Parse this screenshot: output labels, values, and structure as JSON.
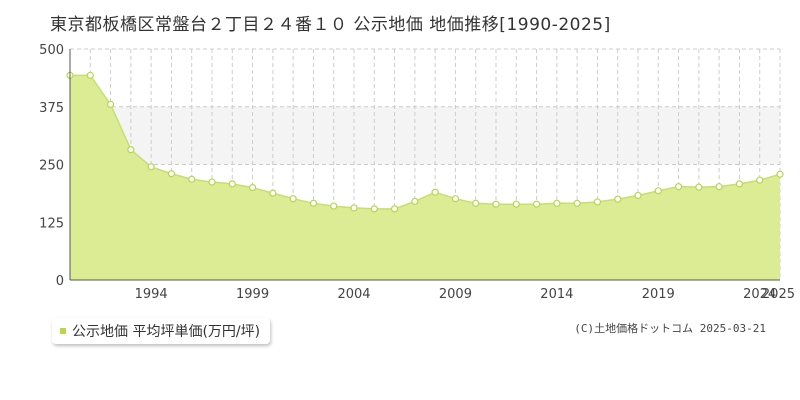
{
  "title": "東京都板橋区常盤台２丁目２４番１０ 公示地価 地価推移[1990-2025]",
  "legend_label": "公示地価 平均坪単価(万円/坪)",
  "copyright": "(C)土地価格ドットコム 2025-03-21",
  "colors": {
    "fill": "#dbec95",
    "line": "#c6e06a",
    "point": "#b5d84a",
    "band": "#f4f4f4"
  },
  "chart_data": {
    "type": "area",
    "title": "",
    "xlabel": "",
    "ylabel": "",
    "x": [
      1990,
      1991,
      1992,
      1993,
      1994,
      1995,
      1996,
      1997,
      1998,
      1999,
      2000,
      2001,
      2002,
      2003,
      2004,
      2005,
      2006,
      2007,
      2008,
      2009,
      2010,
      2011,
      2012,
      2013,
      2014,
      2015,
      2016,
      2017,
      2018,
      2019,
      2020,
      2021,
      2022,
      2023,
      2024,
      2025
    ],
    "series": [
      {
        "name": "公示地価 平均坪単価(万円/坪)",
        "values": [
          443,
          443,
          380,
          282,
          245,
          230,
          218,
          212,
          208,
          200,
          188,
          176,
          166,
          160,
          156,
          154,
          154,
          170,
          190,
          176,
          166,
          164,
          164,
          164,
          166,
          166,
          169,
          175,
          183,
          193,
          202,
          201,
          202,
          208,
          216,
          229
        ]
      }
    ],
    "ylim": [
      0,
      500
    ],
    "yticks": [
      0,
      125,
      250,
      375,
      500
    ],
    "xtick_labels": [
      "1994",
      "1999",
      "2004",
      "2009",
      "2014",
      "2019",
      "2024",
      "2025"
    ],
    "xtick_years": [
      1994,
      1999,
      2004,
      2009,
      2014,
      2019,
      2024,
      2025
    ],
    "grid": true,
    "highlight_band": [
      250,
      375
    ],
    "legend_position": "bottom-left"
  }
}
